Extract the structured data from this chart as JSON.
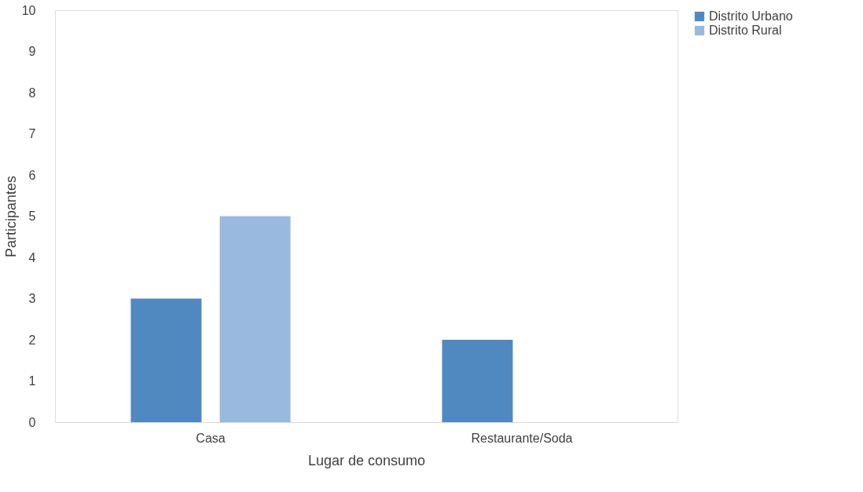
{
  "chart_data": {
    "type": "bar",
    "xlabel": "Lugar de consumo",
    "ylabel": "Participantes",
    "categories": [
      "Casa",
      "Restaurante/Soda"
    ],
    "series": [
      {
        "name": "Distrito Urbano",
        "color": "#4f89c0",
        "values": [
          3,
          2
        ]
      },
      {
        "name": "Distrito Rural",
        "color": "#9ab9df",
        "values": [
          5,
          0
        ]
      }
    ],
    "ylim": [
      0,
      10
    ],
    "yticks": [
      0,
      1,
      2,
      3,
      4,
      5,
      6,
      7,
      8,
      9,
      10
    ],
    "grid": false,
    "legend": "right"
  }
}
